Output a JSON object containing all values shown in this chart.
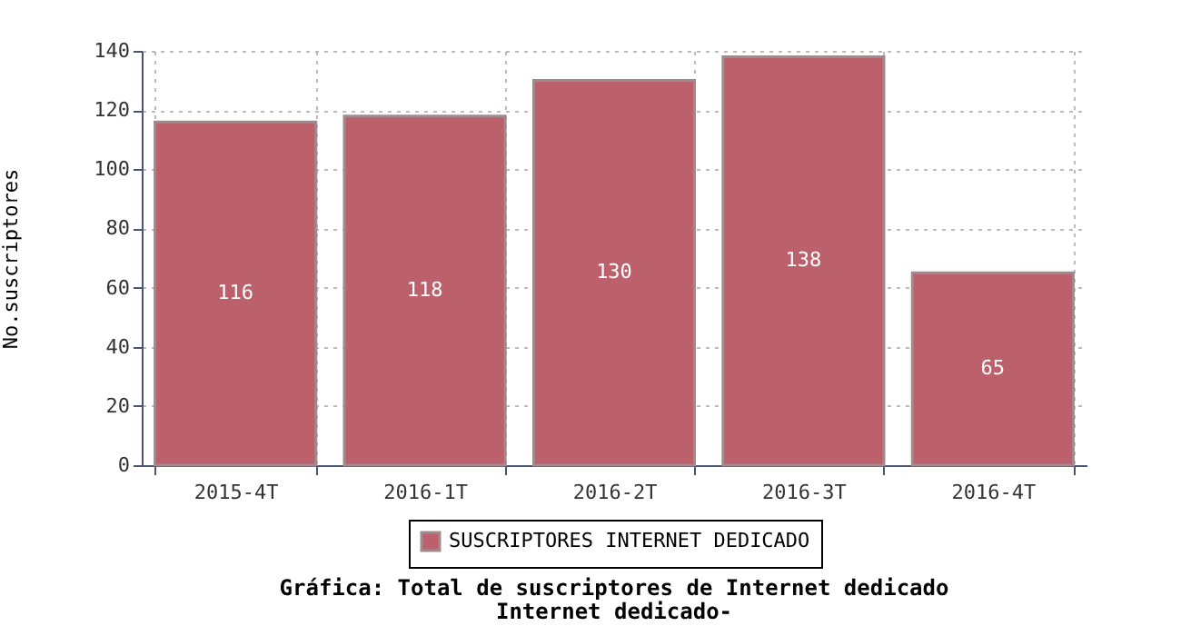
{
  "chart_data": {
    "type": "bar",
    "title": "Gráfica: Total de suscriptores de Internet dedicado",
    "subtitle": "Internet dedicado-",
    "ylabel": "No.suscriptores",
    "categories": [
      "2015-4T",
      "2016-1T",
      "2016-2T",
      "2016-3T",
      "2016-4T"
    ],
    "series": [
      {
        "name": "SUSCRIPTORES INTERNET DEDICADO",
        "color": "#bc616b",
        "values": [
          116,
          118,
          130,
          138,
          65
        ]
      }
    ],
    "ylim": [
      0,
      140
    ],
    "yticks": [
      0,
      20,
      40,
      60,
      80,
      100,
      120,
      140
    ],
    "grid": true,
    "legend": "bottom",
    "data_labels": true
  }
}
